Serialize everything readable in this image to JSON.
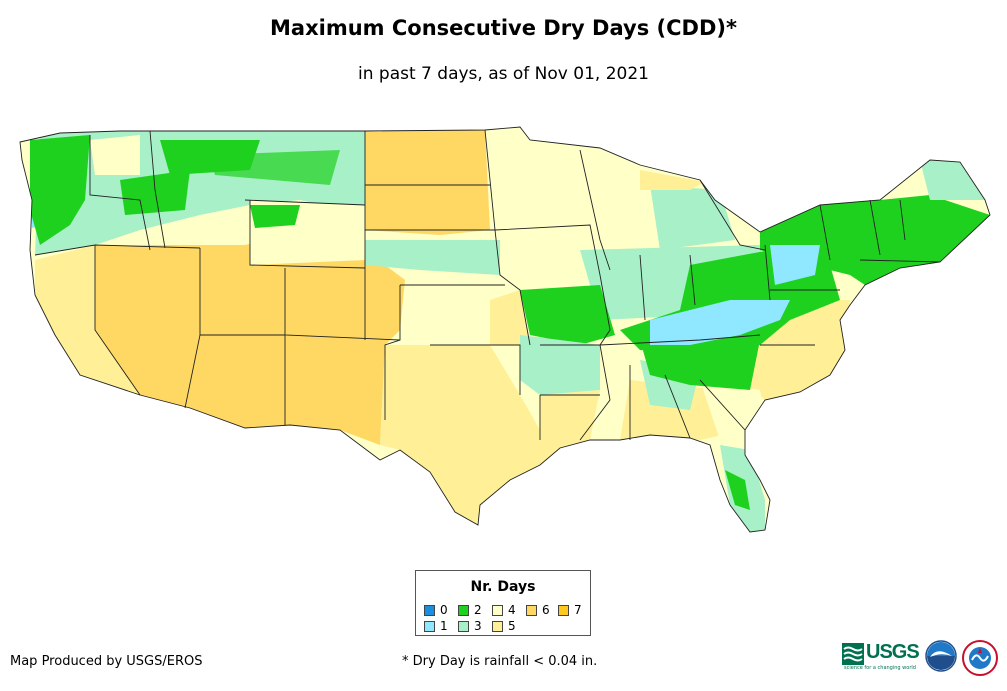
{
  "header": {
    "title": "Maximum Consecutive Dry Days (CDD)*",
    "subtitle": "in past 7 days, as of Nov 01, 2021"
  },
  "legend": {
    "title": "Nr. Days",
    "items": [
      {
        "label": "0",
        "color": "#1a8fe0"
      },
      {
        "label": "1",
        "color": "#8fe8ff"
      },
      {
        "label": "2",
        "color": "#1fd11f"
      },
      {
        "label": "3",
        "color": "#a8f0c8"
      },
      {
        "label": "4",
        "color": "#ffffc8"
      },
      {
        "label": "5",
        "color": "#fff098"
      },
      {
        "label": "6",
        "color": "#ffd864"
      },
      {
        "label": "7",
        "color": "#ffc81e"
      }
    ]
  },
  "footer": {
    "credit": "Map Produced by USGS/EROS",
    "footnote": "* Dry Day is rainfall < 0.04 in.",
    "usgs_logo": "USGS",
    "usgs_tagline": "science for a changing world"
  },
  "icons": {
    "usgs": "usgs-logo-icon",
    "noaa": "noaa-logo-icon",
    "nws": "nws-logo-icon"
  }
}
